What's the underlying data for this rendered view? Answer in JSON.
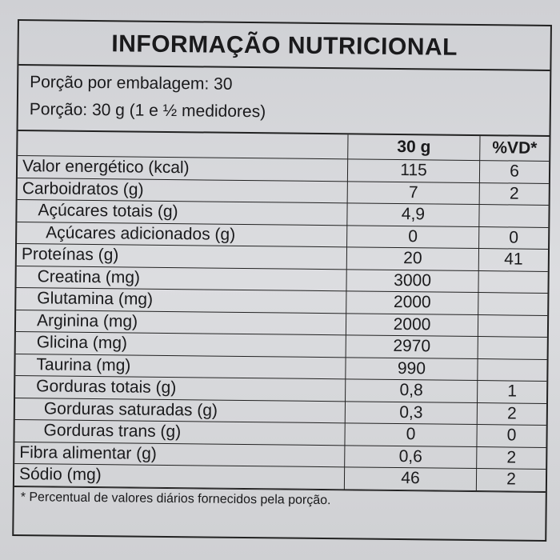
{
  "title": "INFORMAÇÃO NUTRICIONAL",
  "servings_per_package": "Porção por embalagem: 30",
  "serving_size": "Porção: 30 g (1 e ½ medidores)",
  "columns": [
    "",
    "30 g",
    "%VD*"
  ],
  "rows": [
    {
      "name": "Valor energético (kcal)",
      "amount": "115",
      "dv": "6",
      "level": 0
    },
    {
      "name": "Carboidratos (g)",
      "amount": "7",
      "dv": "2",
      "level": 0
    },
    {
      "name": "Açúcares totais (g)",
      "amount": "4,9",
      "dv": "",
      "level": 1
    },
    {
      "name": "Açúcares adicionados (g)",
      "amount": "0",
      "dv": "0",
      "level": 2
    },
    {
      "name": "Proteínas (g)",
      "amount": "20",
      "dv": "41",
      "level": 0
    },
    {
      "name": "Creatina (mg)",
      "amount": "3000",
      "dv": "",
      "level": 1
    },
    {
      "name": "Glutamina (mg)",
      "amount": "2000",
      "dv": "",
      "level": 1
    },
    {
      "name": "Arginina (mg)",
      "amount": "2000",
      "dv": "",
      "level": 1
    },
    {
      "name": "Glicina (mg)",
      "amount": "2970",
      "dv": "",
      "level": 1
    },
    {
      "name": "Taurina (mg)",
      "amount": "990",
      "dv": "",
      "level": 1
    },
    {
      "name": "Gorduras totais (g)",
      "amount": "0,8",
      "dv": "1",
      "level": 1
    },
    {
      "name": "Gorduras saturadas (g)",
      "amount": "0,3",
      "dv": "2",
      "level": 2
    },
    {
      "name": "Gorduras trans (g)",
      "amount": "0",
      "dv": "0",
      "level": 2
    },
    {
      "name": "Fibra alimentar (g)",
      "amount": "0,6",
      "dv": "2",
      "level": 0
    },
    {
      "name": "Sódio (mg)",
      "amount": "46",
      "dv": "2",
      "level": 0
    }
  ],
  "footnote": "* Percentual de valores diários fornecidos pela porção."
}
